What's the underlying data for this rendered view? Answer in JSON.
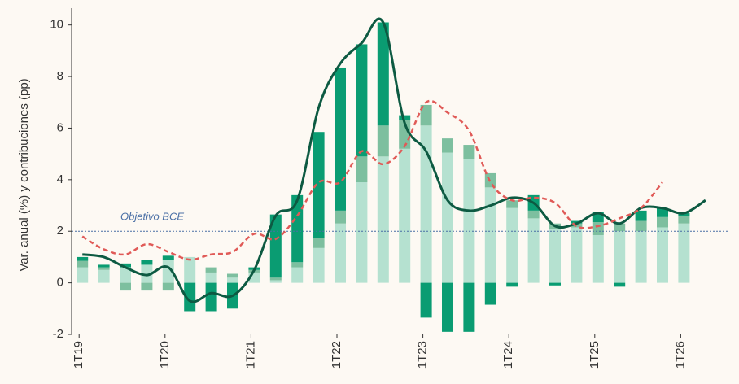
{
  "chart_data": {
    "type": "stacked-bar-line",
    "y_label": "Var. anual (%) y contribuciones (pp)",
    "categories": [
      "1T19",
      null,
      null,
      null,
      "1T20",
      null,
      null,
      null,
      "1T21",
      null,
      null,
      null,
      "1T22",
      null,
      null,
      null,
      "1T23",
      null,
      null,
      null,
      "1T24",
      null,
      null,
      null,
      "1T25",
      null,
      null,
      null,
      "1T26",
      null
    ],
    "series": [
      {
        "kind": "bar",
        "color": "#b5e1d0",
        "values": [
          0.6,
          0.5,
          0.6,
          0.7,
          0.9,
          1.0,
          0.4,
          0.2,
          0.4,
          0.1,
          0.6,
          1.35,
          2.3,
          3.9,
          4.9,
          5.2,
          6.1,
          5.05,
          4.8,
          3.7,
          2.9,
          2.5,
          2.1,
          2.15,
          1.85,
          2.0,
          2.0,
          2.15,
          2.3,
          null
        ]
      },
      {
        "kind": "bar",
        "color": "#7dbf9f",
        "values": [
          0.25,
          0.1,
          -0.3,
          -0.3,
          -0.3,
          0,
          0.2,
          0.15,
          0.1,
          0.1,
          0.2,
          0.4,
          0.5,
          1.0,
          1.2,
          1.1,
          0.8,
          0.55,
          0.55,
          0.55,
          0.3,
          0.3,
          0.2,
          0.15,
          0.5,
          0.3,
          0.4,
          0.4,
          0.3,
          null
        ]
      },
      {
        "kind": "bar",
        "color": "#0a9c72",
        "values": [
          0.15,
          0.1,
          0.15,
          0.2,
          0.15,
          -1.1,
          -1.1,
          -1.0,
          0.1,
          2.45,
          2.6,
          4.1,
          5.55,
          4.35,
          4.0,
          0.2,
          -1.35,
          -1.9,
          -1.9,
          -0.85,
          -0.15,
          0.6,
          -0.1,
          0.1,
          0.4,
          -0.15,
          0.4,
          0.35,
          0.1,
          null
        ]
      },
      {
        "kind": "line",
        "color": "#0d5a42",
        "values": [
          1.1,
          1.0,
          0.6,
          0.3,
          0.6,
          -0.7,
          -0.4,
          -0.5,
          0.5,
          2.6,
          3.2,
          6.8,
          8.5,
          9.3,
          10.1,
          6.2,
          5.1,
          3.2,
          2.8,
          3.0,
          3.3,
          3.1,
          2.2,
          2.3,
          2.7,
          2.3,
          2.9,
          2.9,
          2.7,
          3.2
        ]
      },
      {
        "kind": "dashed",
        "color": "#e05a57",
        "values": [
          1.8,
          1.3,
          1.1,
          1.5,
          1.2,
          0.9,
          1.1,
          1.2,
          1.9,
          1.7,
          2.6,
          3.9,
          3.9,
          5.1,
          4.6,
          5.3,
          7.0,
          6.6,
          5.9,
          3.9,
          3.2,
          3.3,
          3.1,
          2.2,
          2.2,
          2.5,
          2.9,
          3.9,
          null,
          null
        ]
      }
    ],
    "reference_line": {
      "value": 2,
      "label": "Objetivo BCE",
      "color": "#4a6fa5"
    },
    "ylim": [
      -2,
      10.4
    ],
    "yticks": [
      -2,
      0,
      2,
      4,
      6,
      8,
      10
    ]
  }
}
